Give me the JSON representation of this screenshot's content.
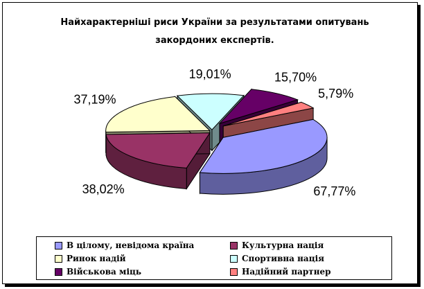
{
  "chart_data": {
    "type": "pie",
    "title": "Найхарактерніші риси України за результатами опитувань закордоних експертів.",
    "title_lines": [
      "Найхарактерніші риси України за результатами опитувань",
      "закордоних експертів."
    ],
    "legend_position": "bottom",
    "series": [
      {
        "name": "В цілому, невідома країна",
        "value": 67.77,
        "label": "67,77%",
        "color": "#9999ff",
        "exploded": true
      },
      {
        "name": "Культурна нація",
        "value": 38.02,
        "label": "38,02%",
        "color": "#993366",
        "exploded": false
      },
      {
        "name": "Ринок надій",
        "value": 37.19,
        "label": "37,19%",
        "color": "#ffffcc",
        "exploded": false
      },
      {
        "name": "Спортивна нація",
        "value": 19.01,
        "label": "19,01%",
        "color": "#ccffff",
        "exploded": false
      },
      {
        "name": "Військова міць",
        "value": 15.7,
        "label": "15,70%",
        "color": "#660066",
        "exploded": true
      },
      {
        "name": "Надійний партнер",
        "value": 5.79,
        "label": "5,79%",
        "color": "#ff8080",
        "exploded": true
      }
    ]
  }
}
